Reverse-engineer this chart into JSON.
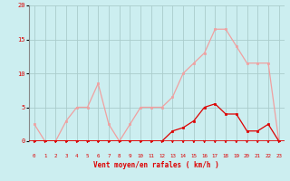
{
  "x": [
    0,
    1,
    2,
    3,
    4,
    5,
    6,
    7,
    8,
    9,
    10,
    11,
    12,
    13,
    14,
    15,
    16,
    17,
    18,
    19,
    20,
    21,
    22,
    23
  ],
  "rafales": [
    2.5,
    0,
    0,
    3,
    5,
    5,
    8.5,
    2.5,
    0,
    2.5,
    5,
    5,
    5,
    6.5,
    10,
    11.5,
    13,
    16.5,
    16.5,
    14,
    11.5,
    11.5,
    11.5,
    0
  ],
  "moyen": [
    0,
    0,
    0,
    0,
    0,
    0,
    0,
    0,
    0,
    0,
    0,
    0,
    0,
    1.5,
    2,
    3,
    5,
    5.5,
    4,
    4,
    1.5,
    1.5,
    2.5,
    0
  ],
  "bg_color": "#cceef0",
  "grid_color": "#aacccc",
  "line_color_rafales": "#f0a0a0",
  "line_color_moyen": "#dd0000",
  "arrow_color": "#dd0000",
  "xlabel": "Vent moyen/en rafales ( km/h )",
  "xlabel_color": "#dd0000",
  "yticks": [
    0,
    5,
    10,
    15,
    20
  ],
  "ylim": [
    0,
    20
  ],
  "xlim": [
    -0.5,
    23.5
  ],
  "tick_color": "#dd0000",
  "spine_color": "#888888"
}
